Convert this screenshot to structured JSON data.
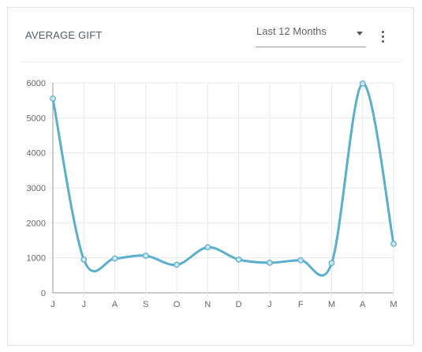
{
  "card": {
    "title": "AVERAGE GIFT",
    "period_select": {
      "value": "Last 12 Months"
    },
    "menu_icon": "more-vert-icon"
  },
  "colors": {
    "line": "#5aafcf",
    "grid": "#e8e8e8",
    "axis": "#999999"
  },
  "chart_data": {
    "type": "line",
    "title": "AVERAGE GIFT",
    "xlabel": "",
    "ylabel": "",
    "categories": [
      "J",
      "J",
      "A",
      "S",
      "O",
      "N",
      "D",
      "J",
      "F",
      "M",
      "A",
      "M"
    ],
    "series": [
      {
        "values": [
          5550,
          950,
          980,
          1060,
          800,
          1300,
          950,
          860,
          930,
          850,
          5980,
          1400
        ]
      }
    ],
    "ylim": [
      0,
      6000
    ],
    "yticks": [
      0,
      1000,
      2000,
      3000,
      4000,
      5000,
      6000
    ],
    "grid": true,
    "smooth": true,
    "legend": "none"
  }
}
